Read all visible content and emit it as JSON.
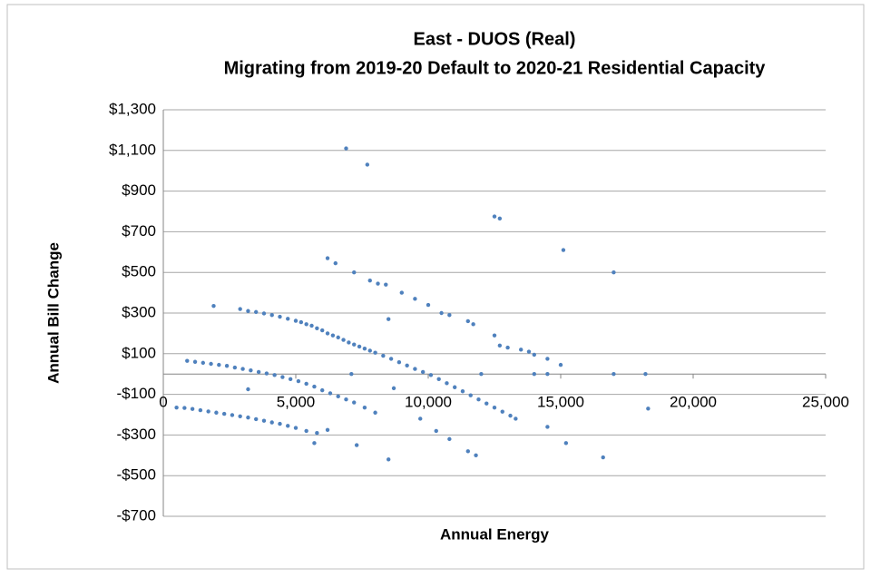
{
  "chart_data": {
    "type": "scatter",
    "title": "East - DUOS (Real)",
    "subtitle": "Migrating from 2019-20 Default to 2020-21 Residential Capacity",
    "x_label": "Annual Energy",
    "y_label": "Annual Bill Change",
    "color": "#4f81bd",
    "grid": true,
    "xlim": [
      0,
      25000
    ],
    "xticks": [
      0,
      {
        "value": 5000,
        "label": "5,000"
      },
      {
        "value": 10000,
        "label": "10,000"
      },
      {
        "value": 15000,
        "label": "15,000"
      },
      {
        "value": 20000,
        "label": "20,000"
      },
      {
        "value": 25000,
        "label": "25,000"
      }
    ],
    "ylim": [
      -700,
      1300
    ],
    "yticks": [
      {
        "value": -700,
        "label": "-$700"
      },
      {
        "value": -500,
        "label": "-$500"
      },
      {
        "value": -300,
        "label": "-$300"
      },
      {
        "value": -100,
        "label": "-$100"
      },
      {
        "value": 100,
        "label": "$100"
      },
      {
        "value": 300,
        "label": "$300"
      },
      {
        "value": 500,
        "label": "$500"
      },
      {
        "value": 700,
        "label": "$700"
      },
      {
        "value": 900,
        "label": "$900"
      },
      {
        "value": 1100,
        "label": "$1,100"
      },
      {
        "value": 1300,
        "label": "$1,300"
      }
    ],
    "x": [
      2900,
      3200,
      3500,
      3800,
      4100,
      4400,
      4700,
      5000,
      5200,
      5400,
      5600,
      5800,
      6000,
      6200,
      6400,
      6600,
      6800,
      7000,
      7200,
      7400,
      7600,
      7800,
      8000,
      8300,
      8600,
      8900,
      9200,
      9500,
      9800,
      10100,
      10400,
      10700,
      11000,
      11300,
      11600,
      11900,
      12200,
      12500,
      12800,
      13100,
      900,
      1200,
      1500,
      1800,
      2100,
      2400,
      2700,
      3000,
      3300,
      3600,
      3900,
      4200,
      4500,
      4800,
      5100,
      5400,
      5700,
      6000,
      6300,
      6600,
      6900,
      7200,
      7600,
      8000,
      500,
      800,
      1100,
      1400,
      1700,
      2000,
      2300,
      2600,
      2900,
      3200,
      3500,
      3800,
      4100,
      4400,
      4700,
      5000,
      5400,
      5800,
      6200,
      6500,
      7200,
      7800,
      8100,
      8400,
      9000,
      9500,
      10000,
      10500,
      10800,
      11500,
      11700,
      12500,
      12700,
      13000,
      13500,
      13800,
      14000,
      14500,
      15000,
      6900,
      7700,
      12500,
      12700,
      15100,
      17000,
      1900,
      7100,
      17000,
      18200,
      18300,
      16600,
      8500,
      15200,
      13300,
      14500,
      11800,
      11500,
      7300,
      5700,
      6200,
      8500,
      14500,
      10300,
      8700,
      12000,
      14000,
      3200,
      9700,
      10800
    ],
    "values": [
      320,
      310,
      305,
      298,
      290,
      282,
      272,
      262,
      255,
      245,
      238,
      225,
      215,
      200,
      190,
      180,
      168,
      155,
      145,
      135,
      125,
      115,
      105,
      90,
      75,
      58,
      42,
      25,
      10,
      -5,
      -25,
      -45,
      -65,
      -85,
      -105,
      -125,
      -145,
      -165,
      -185,
      -205,
      65,
      60,
      55,
      50,
      45,
      40,
      32,
      25,
      18,
      10,
      3,
      -5,
      -15,
      -25,
      -35,
      -48,
      -62,
      -80,
      -95,
      -110,
      -125,
      -140,
      -165,
      -190,
      -165,
      -167,
      -172,
      -178,
      -184,
      -190,
      -196,
      -202,
      -208,
      -214,
      -222,
      -230,
      -238,
      -245,
      -255,
      -265,
      -280,
      -290,
      570,
      545,
      500,
      460,
      445,
      440,
      400,
      370,
      340,
      300,
      290,
      260,
      245,
      190,
      140,
      130,
      120,
      110,
      95,
      75,
      45,
      1110,
      1030,
      775,
      765,
      610,
      500,
      335,
      0,
      0,
      0,
      -170,
      -410,
      -420,
      -340,
      -220,
      -260,
      -400,
      -380,
      -350,
      -340,
      -275,
      270,
      0,
      -280,
      -70,
      0,
      0,
      -75,
      -220,
      -320
    ]
  }
}
